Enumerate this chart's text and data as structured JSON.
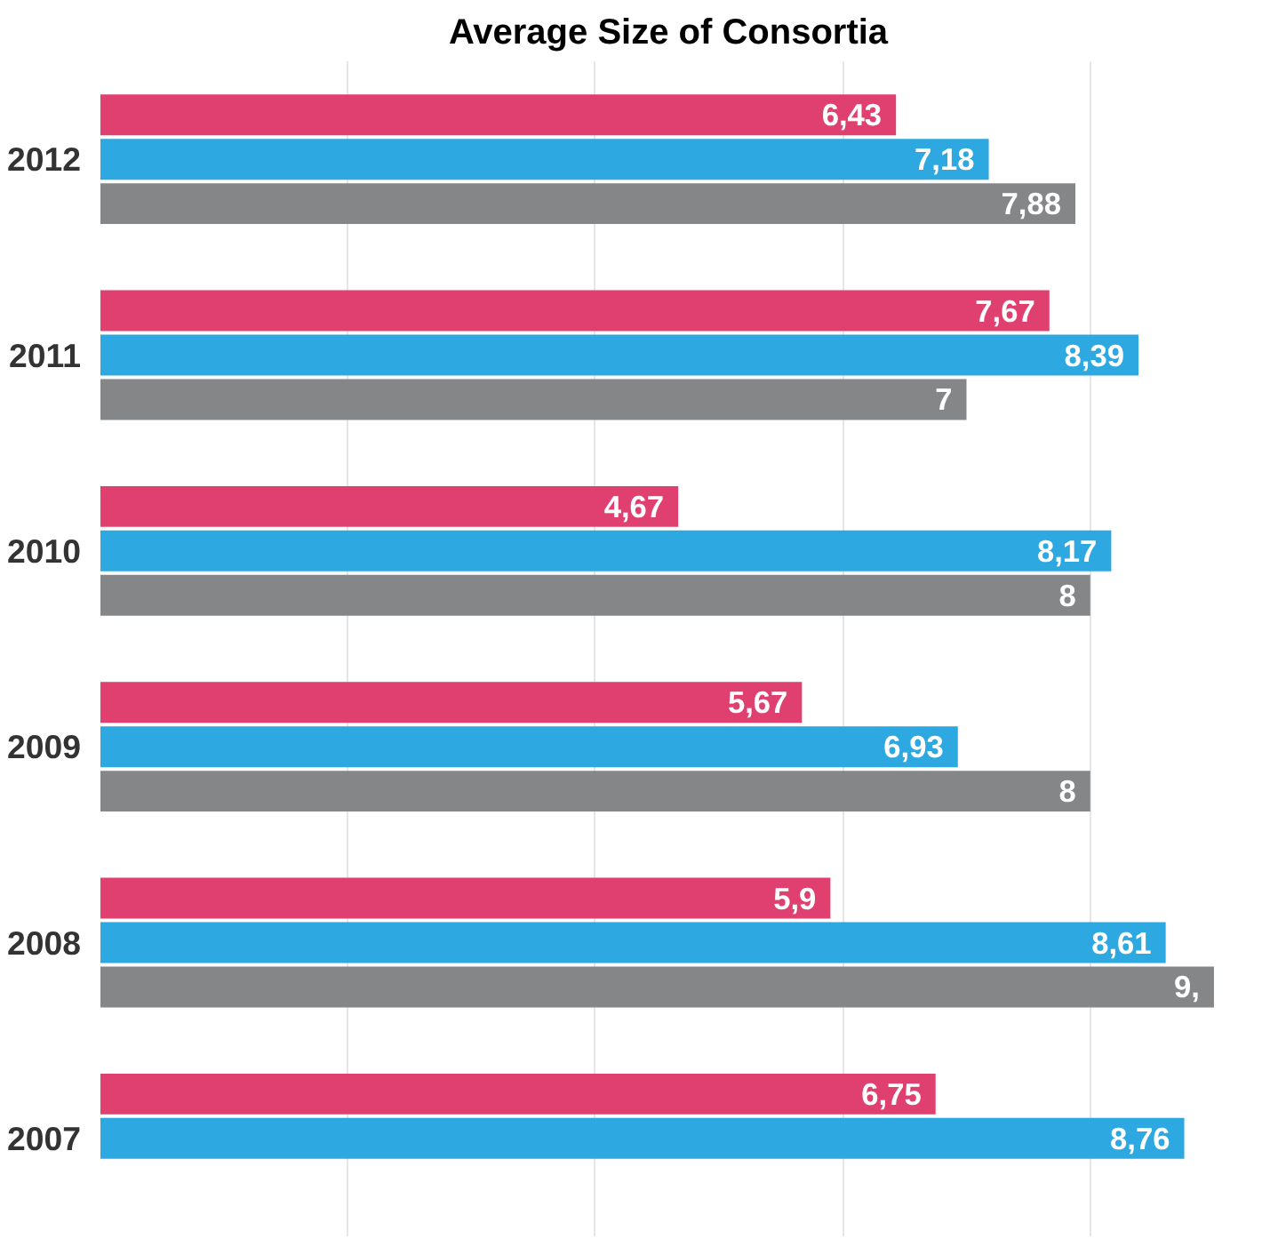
{
  "chart_data": {
    "type": "bar",
    "orientation": "horizontal",
    "title": "Average Size of Consortia",
    "categories": [
      "2012",
      "2011",
      "2010",
      "2009",
      "2008",
      "2007"
    ],
    "series": [
      {
        "color": "#e0406f",
        "values": [
          6.43,
          7.67,
          4.67,
          5.67,
          5.9,
          6.75
        ],
        "value_labels": [
          "6,43",
          "7,67",
          "4,67",
          "5,67",
          "5,9",
          "6,75"
        ]
      },
      {
        "color": "#2ea8e0",
        "values": [
          7.18,
          8.39,
          8.17,
          6.93,
          8.61,
          8.76
        ],
        "value_labels": [
          "7,18",
          "8,39",
          "8,17",
          "6,93",
          "8,61",
          "8,76"
        ]
      },
      {
        "color": "#858688",
        "values": [
          7.88,
          7,
          8,
          8,
          9,
          null
        ],
        "value_labels": [
          "7,88",
          "7",
          "8",
          "8",
          "9,",
          null
        ]
      }
    ],
    "xticks": [
      {
        "value": 2,
        "label": null
      },
      {
        "value": 4,
        "label": null
      },
      {
        "value": 6,
        "label": null
      },
      {
        "value": 8,
        "label": null
      }
    ],
    "grid": "x",
    "tick_labels": "y"
  }
}
